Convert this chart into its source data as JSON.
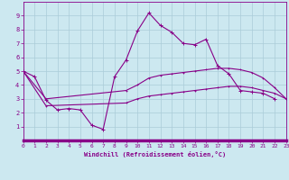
{
  "xlabel": "Windchill (Refroidissement éolien,°C)",
  "background_color": "#cce8f0",
  "grid_color": "#aaccd8",
  "line_color": "#880088",
  "xlim": [
    0,
    23
  ],
  "ylim": [
    0,
    10
  ],
  "xticks": [
    0,
    1,
    2,
    3,
    4,
    5,
    6,
    7,
    8,
    9,
    10,
    11,
    12,
    13,
    14,
    15,
    16,
    17,
    18,
    19,
    20,
    21,
    22,
    23
  ],
  "yticks": [
    1,
    2,
    3,
    4,
    5,
    6,
    7,
    8,
    9
  ],
  "line1_x": [
    0,
    1,
    2,
    3,
    4,
    5,
    6,
    7,
    8,
    9,
    10,
    11,
    12,
    13,
    14,
    15,
    16,
    17,
    18,
    19,
    20,
    21,
    22
  ],
  "line1_y": [
    5.0,
    4.6,
    2.9,
    2.2,
    2.3,
    2.2,
    1.1,
    0.8,
    4.6,
    5.8,
    7.9,
    9.2,
    8.3,
    7.8,
    7.0,
    6.9,
    7.3,
    5.4,
    4.8,
    3.6,
    3.5,
    3.4,
    3.0
  ],
  "line2_x": [
    0,
    2,
    9,
    10,
    11,
    12,
    13,
    14,
    15,
    16,
    17,
    18,
    19,
    20,
    21,
    22,
    23
  ],
  "line2_y": [
    5.0,
    3.0,
    3.6,
    4.0,
    4.5,
    4.7,
    4.8,
    4.9,
    5.0,
    5.1,
    5.2,
    5.2,
    5.1,
    4.9,
    4.5,
    3.8,
    3.0
  ],
  "line3_x": [
    0,
    2,
    9,
    10,
    11,
    12,
    13,
    14,
    15,
    16,
    17,
    18,
    19,
    20,
    21,
    22,
    23
  ],
  "line3_y": [
    5.0,
    2.5,
    2.7,
    3.0,
    3.2,
    3.3,
    3.4,
    3.5,
    3.6,
    3.7,
    3.8,
    3.9,
    3.9,
    3.8,
    3.6,
    3.4,
    3.0
  ]
}
